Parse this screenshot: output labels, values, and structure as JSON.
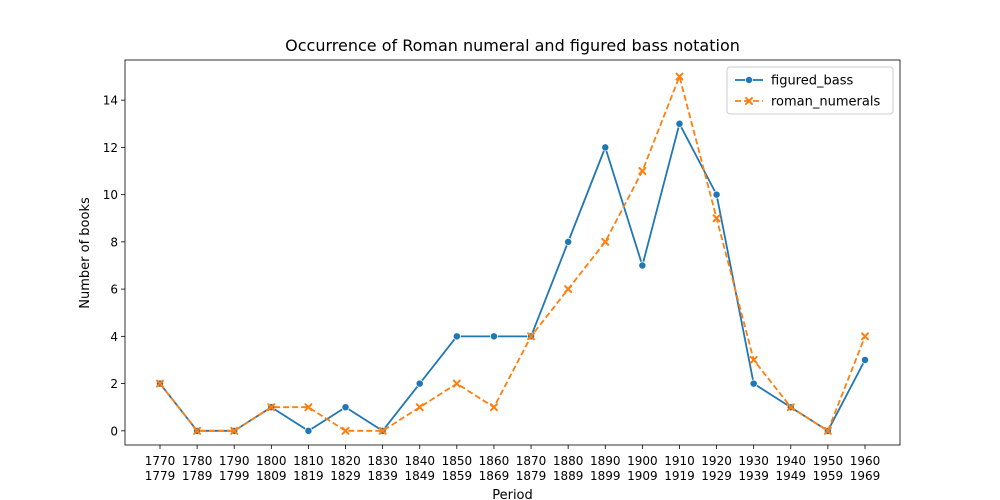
{
  "chart_data": {
    "type": "line",
    "title": "Occurrence of Roman numeral and figured bass notation",
    "xlabel": "Period",
    "ylabel": "Number of books",
    "ylim": [
      -0.6,
      15.7
    ],
    "yticks": [
      0,
      2,
      4,
      6,
      8,
      10,
      12,
      14
    ],
    "categories": [
      [
        "1770",
        "1779"
      ],
      [
        "1780",
        "1789"
      ],
      [
        "1790",
        "1799"
      ],
      [
        "1800",
        "1809"
      ],
      [
        "1810",
        "1819"
      ],
      [
        "1820",
        "1829"
      ],
      [
        "1830",
        "1839"
      ],
      [
        "1840",
        "1849"
      ],
      [
        "1850",
        "1859"
      ],
      [
        "1860",
        "1869"
      ],
      [
        "1870",
        "1879"
      ],
      [
        "1880",
        "1889"
      ],
      [
        "1890",
        "1899"
      ],
      [
        "1900",
        "1909"
      ],
      [
        "1910",
        "1919"
      ],
      [
        "1920",
        "1929"
      ],
      [
        "1930",
        "1939"
      ],
      [
        "1940",
        "1949"
      ],
      [
        "1950",
        "1959"
      ],
      [
        "1960",
        "1969"
      ]
    ],
    "series": [
      {
        "name": "figured_bass",
        "color": "#1f77b4",
        "marker": "circle",
        "line_style": "solid",
        "values": [
          2,
          0,
          0,
          1,
          0,
          1,
          0,
          2,
          4,
          4,
          4,
          8,
          12,
          7,
          13,
          10,
          2,
          1,
          0,
          3
        ]
      },
      {
        "name": "roman_numerals",
        "color": "#ff7f0e",
        "marker": "x",
        "line_style": "dashed",
        "values": [
          2,
          0,
          0,
          1,
          1,
          0,
          0,
          1,
          2,
          1,
          4,
          6,
          8,
          11,
          15,
          9,
          3,
          1,
          0,
          4
        ]
      }
    ],
    "legend_position": "top-right",
    "grid": false
  }
}
